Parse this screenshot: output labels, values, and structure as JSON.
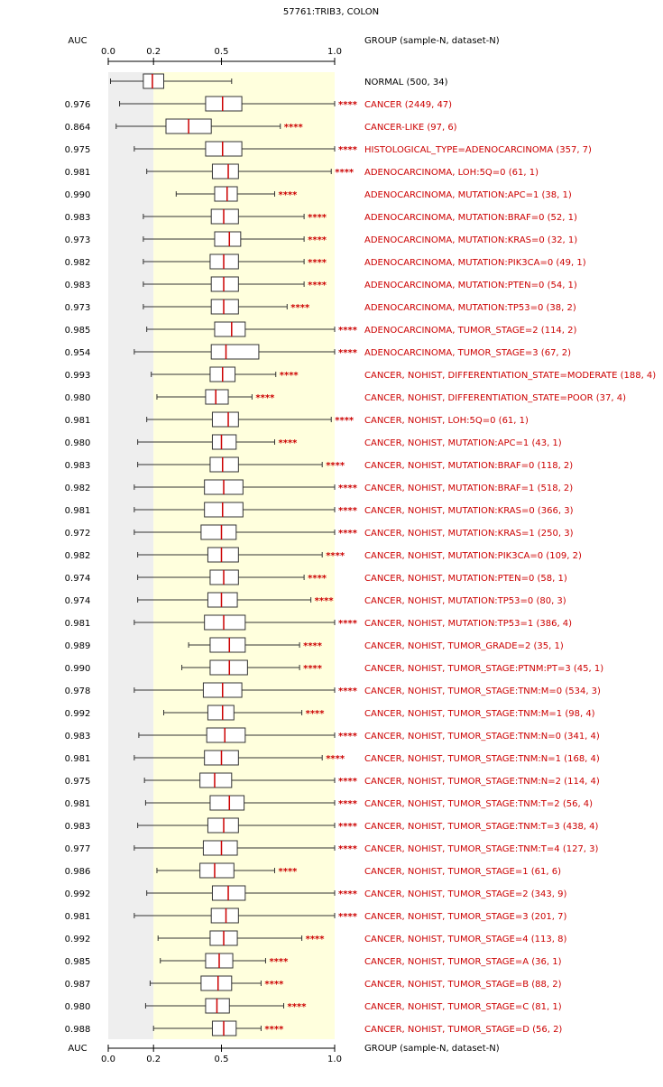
{
  "colors": {
    "background": "#ffffff",
    "gray_band": "#eeeeee",
    "yellow_band": "#ffffdd",
    "box_fill": "#ffffff",
    "box_stroke": "#333333",
    "median": "#cc0000",
    "label_red": "#cc0000",
    "label_black": "#000000"
  },
  "chart_data": {
    "type": "boxplot",
    "title": "57761:TRIB3, COLON",
    "auc_header": "AUC",
    "group_header": "GROUP (sample-N, dataset-N)",
    "axis_ticks": [
      {
        "value": 0.0,
        "label": "0.0"
      },
      {
        "value": 0.2,
        "label": "0.2"
      },
      {
        "value": 0.5,
        "label": "0.5"
      },
      {
        "value": 1.0,
        "label": "1.0"
      }
    ],
    "xlim": [
      0,
      1
    ],
    "gray_region": [
      0,
      0.2
    ],
    "yellow_region": [
      0.2,
      1.0
    ],
    "rows": [
      {
        "label": "NORMAL (500, 34)",
        "auc": "",
        "stars": "",
        "min": 0.01,
        "q1": 0.155,
        "median": 0.195,
        "q3": 0.245,
        "max": 0.545,
        "normal": true
      },
      {
        "label": "CANCER (2449, 47)",
        "auc": "0.976",
        "stars": "****",
        "min": 0.05,
        "q1": 0.43,
        "median": 0.505,
        "q3": 0.59,
        "max": 1.0
      },
      {
        "label": "CANCER-LIKE (97, 6)",
        "auc": "0.864",
        "stars": "****",
        "min": 0.035,
        "q1": 0.255,
        "median": 0.355,
        "q3": 0.455,
        "max": 0.76
      },
      {
        "label": "HISTOLOGICAL_TYPE=ADENOCARCINOMA (357, 7)",
        "auc": "0.975",
        "stars": "****",
        "min": 0.115,
        "q1": 0.43,
        "median": 0.505,
        "q3": 0.59,
        "max": 1.0
      },
      {
        "label": "ADENOCARCINOMA, LOH:5Q=0 (61, 1)",
        "auc": "0.981",
        "stars": "****",
        "min": 0.17,
        "q1": 0.46,
        "median": 0.53,
        "q3": 0.575,
        "max": 0.985
      },
      {
        "label": "ADENOCARCINOMA, MUTATION:APC=1 (38, 1)",
        "auc": "0.990",
        "stars": "****",
        "min": 0.3,
        "q1": 0.47,
        "median": 0.525,
        "q3": 0.57,
        "max": 0.735
      },
      {
        "label": "ADENOCARCINOMA, MUTATION:BRAF=0 (52, 1)",
        "auc": "0.983",
        "stars": "****",
        "min": 0.155,
        "q1": 0.455,
        "median": 0.51,
        "q3": 0.575,
        "max": 0.865
      },
      {
        "label": "ADENOCARCINOMA, MUTATION:KRAS=0 (32, 1)",
        "auc": "0.973",
        "stars": "****",
        "min": 0.155,
        "q1": 0.47,
        "median": 0.535,
        "q3": 0.585,
        "max": 0.865
      },
      {
        "label": "ADENOCARCINOMA, MUTATION:PIK3CA=0 (49, 1)",
        "auc": "0.982",
        "stars": "****",
        "min": 0.155,
        "q1": 0.45,
        "median": 0.51,
        "q3": 0.575,
        "max": 0.865
      },
      {
        "label": "ADENOCARCINOMA, MUTATION:PTEN=0 (54, 1)",
        "auc": "0.983",
        "stars": "****",
        "min": 0.155,
        "q1": 0.455,
        "median": 0.51,
        "q3": 0.575,
        "max": 0.865
      },
      {
        "label": "ADENOCARCINOMA, MUTATION:TP53=0 (38, 2)",
        "auc": "0.973",
        "stars": "****",
        "min": 0.155,
        "q1": 0.455,
        "median": 0.51,
        "q3": 0.575,
        "max": 0.79
      },
      {
        "label": "ADENOCARCINOMA, TUMOR_STAGE=2 (114, 2)",
        "auc": "0.985",
        "stars": "****",
        "min": 0.17,
        "q1": 0.47,
        "median": 0.545,
        "q3": 0.605,
        "max": 1.0
      },
      {
        "label": "ADENOCARCINOMA, TUMOR_STAGE=3 (67, 2)",
        "auc": "0.954",
        "stars": "****",
        "min": 0.115,
        "q1": 0.455,
        "median": 0.52,
        "q3": 0.665,
        "max": 1.0
      },
      {
        "label": "CANCER, NOHIST, DIFFERENTIATION_STATE=MODERATE (188, 4)",
        "auc": "0.993",
        "stars": "****",
        "min": 0.19,
        "q1": 0.45,
        "median": 0.505,
        "q3": 0.56,
        "max": 0.74
      },
      {
        "label": "CANCER, NOHIST, DIFFERENTIATION_STATE=POOR (37, 4)",
        "auc": "0.980",
        "stars": "****",
        "min": 0.215,
        "q1": 0.43,
        "median": 0.475,
        "q3": 0.53,
        "max": 0.635
      },
      {
        "label": "CANCER, NOHIST, LOH:5Q=0 (61, 1)",
        "auc": "0.981",
        "stars": "****",
        "min": 0.17,
        "q1": 0.46,
        "median": 0.53,
        "q3": 0.575,
        "max": 0.985
      },
      {
        "label": "CANCER, NOHIST, MUTATION:APC=1 (43, 1)",
        "auc": "0.980",
        "stars": "****",
        "min": 0.13,
        "q1": 0.46,
        "median": 0.5,
        "q3": 0.565,
        "max": 0.735
      },
      {
        "label": "CANCER, NOHIST, MUTATION:BRAF=0 (118, 2)",
        "auc": "0.983",
        "stars": "****",
        "min": 0.13,
        "q1": 0.45,
        "median": 0.505,
        "q3": 0.575,
        "max": 0.945
      },
      {
        "label": "CANCER, NOHIST, MUTATION:BRAF=1 (518, 2)",
        "auc": "0.982",
        "stars": "****",
        "min": 0.115,
        "q1": 0.425,
        "median": 0.51,
        "q3": 0.595,
        "max": 1.0
      },
      {
        "label": "CANCER, NOHIST, MUTATION:KRAS=0 (366, 3)",
        "auc": "0.981",
        "stars": "****",
        "min": 0.115,
        "q1": 0.425,
        "median": 0.505,
        "q3": 0.595,
        "max": 1.0
      },
      {
        "label": "CANCER, NOHIST, MUTATION:KRAS=1 (250, 3)",
        "auc": "0.972",
        "stars": "****",
        "min": 0.115,
        "q1": 0.41,
        "median": 0.5,
        "q3": 0.565,
        "max": 1.0
      },
      {
        "label": "CANCER, NOHIST, MUTATION:PIK3CA=0 (109, 2)",
        "auc": "0.982",
        "stars": "****",
        "min": 0.13,
        "q1": 0.44,
        "median": 0.5,
        "q3": 0.575,
        "max": 0.945
      },
      {
        "label": "CANCER, NOHIST, MUTATION:PTEN=0 (58, 1)",
        "auc": "0.974",
        "stars": "****",
        "min": 0.13,
        "q1": 0.45,
        "median": 0.51,
        "q3": 0.575,
        "max": 0.865
      },
      {
        "label": "CANCER, NOHIST, MUTATION:TP53=0 (80, 3)",
        "auc": "0.974",
        "stars": "****",
        "min": 0.13,
        "q1": 0.44,
        "median": 0.5,
        "q3": 0.57,
        "max": 0.895
      },
      {
        "label": "CANCER, NOHIST, MUTATION:TP53=1 (386, 4)",
        "auc": "0.981",
        "stars": "****",
        "min": 0.115,
        "q1": 0.425,
        "median": 0.51,
        "q3": 0.605,
        "max": 1.0
      },
      {
        "label": "CANCER, NOHIST, TUMOR_GRADE=2 (35, 1)",
        "auc": "0.989",
        "stars": "****",
        "min": 0.355,
        "q1": 0.45,
        "median": 0.535,
        "q3": 0.605,
        "max": 0.845
      },
      {
        "label": "CANCER, NOHIST, TUMOR_STAGE:PTNM:PT=3 (45, 1)",
        "auc": "0.990",
        "stars": "****",
        "min": 0.325,
        "q1": 0.45,
        "median": 0.535,
        "q3": 0.615,
        "max": 0.845
      },
      {
        "label": "CANCER, NOHIST, TUMOR_STAGE:TNM:M=0 (534, 3)",
        "auc": "0.978",
        "stars": "****",
        "min": 0.115,
        "q1": 0.42,
        "median": 0.505,
        "q3": 0.59,
        "max": 1.0
      },
      {
        "label": "CANCER, NOHIST, TUMOR_STAGE:TNM:M=1 (98, 4)",
        "auc": "0.992",
        "stars": "****",
        "min": 0.245,
        "q1": 0.44,
        "median": 0.505,
        "q3": 0.555,
        "max": 0.855
      },
      {
        "label": "CANCER, NOHIST, TUMOR_STAGE:TNM:N=0 (341, 4)",
        "auc": "0.983",
        "stars": "****",
        "min": 0.135,
        "q1": 0.435,
        "median": 0.515,
        "q3": 0.605,
        "max": 1.0
      },
      {
        "label": "CANCER, NOHIST, TUMOR_STAGE:TNM:N=1 (168, 4)",
        "auc": "0.981",
        "stars": "****",
        "min": 0.115,
        "q1": 0.425,
        "median": 0.5,
        "q3": 0.575,
        "max": 0.945
      },
      {
        "label": "CANCER, NOHIST, TUMOR_STAGE:TNM:N=2 (114, 4)",
        "auc": "0.975",
        "stars": "****",
        "min": 0.16,
        "q1": 0.405,
        "median": 0.47,
        "q3": 0.545,
        "max": 1.0
      },
      {
        "label": "CANCER, NOHIST, TUMOR_STAGE:TNM:T=2 (56, 4)",
        "auc": "0.981",
        "stars": "****",
        "min": 0.165,
        "q1": 0.45,
        "median": 0.535,
        "q3": 0.6,
        "max": 1.0
      },
      {
        "label": "CANCER, NOHIST, TUMOR_STAGE:TNM:T=3 (438, 4)",
        "auc": "0.983",
        "stars": "****",
        "min": 0.13,
        "q1": 0.44,
        "median": 0.51,
        "q3": 0.575,
        "max": 1.0
      },
      {
        "label": "CANCER, NOHIST, TUMOR_STAGE:TNM:T=4 (127, 3)",
        "auc": "0.977",
        "stars": "****",
        "min": 0.115,
        "q1": 0.42,
        "median": 0.5,
        "q3": 0.57,
        "max": 1.0
      },
      {
        "label": "CANCER, NOHIST, TUMOR_STAGE=1 (61, 6)",
        "auc": "0.986",
        "stars": "****",
        "min": 0.215,
        "q1": 0.405,
        "median": 0.47,
        "q3": 0.555,
        "max": 0.735
      },
      {
        "label": "CANCER, NOHIST, TUMOR_STAGE=2 (343, 9)",
        "auc": "0.992",
        "stars": "****",
        "min": 0.17,
        "q1": 0.46,
        "median": 0.53,
        "q3": 0.605,
        "max": 1.0
      },
      {
        "label": "CANCER, NOHIST, TUMOR_STAGE=3 (201, 7)",
        "auc": "0.981",
        "stars": "****",
        "min": 0.115,
        "q1": 0.455,
        "median": 0.52,
        "q3": 0.575,
        "max": 1.0
      },
      {
        "label": "CANCER, NOHIST, TUMOR_STAGE=4 (113, 8)",
        "auc": "0.992",
        "stars": "****",
        "min": 0.22,
        "q1": 0.45,
        "median": 0.51,
        "q3": 0.57,
        "max": 0.855
      },
      {
        "label": "CANCER, NOHIST, TUMOR_STAGE=A (36, 1)",
        "auc": "0.985",
        "stars": "****",
        "min": 0.23,
        "q1": 0.43,
        "median": 0.49,
        "q3": 0.55,
        "max": 0.695
      },
      {
        "label": "CANCER, NOHIST, TUMOR_STAGE=B (88, 2)",
        "auc": "0.987",
        "stars": "****",
        "min": 0.185,
        "q1": 0.41,
        "median": 0.485,
        "q3": 0.545,
        "max": 0.675
      },
      {
        "label": "CANCER, NOHIST, TUMOR_STAGE=C (81, 1)",
        "auc": "0.980",
        "stars": "****",
        "min": 0.165,
        "q1": 0.43,
        "median": 0.48,
        "q3": 0.535,
        "max": 0.775
      },
      {
        "label": "CANCER, NOHIST, TUMOR_STAGE=D (56, 2)",
        "auc": "0.988",
        "stars": "****",
        "min": 0.2,
        "q1": 0.46,
        "median": 0.51,
        "q3": 0.565,
        "max": 0.675
      }
    ]
  }
}
